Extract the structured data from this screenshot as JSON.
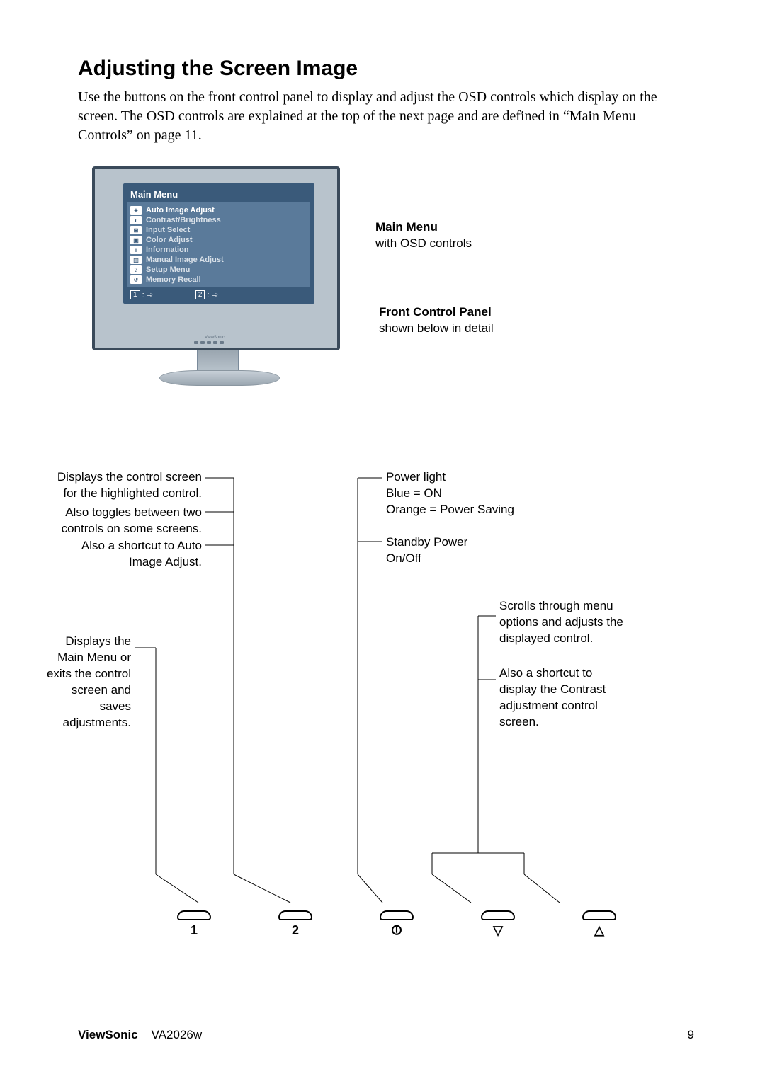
{
  "heading": "Adjusting the Screen Image",
  "intro": "Use the buttons on the front control panel to display and adjust the OSD controls which display on the screen. The OSD controls are explained at the top of the next page and are defined in “Main Menu Controls” on page 11.",
  "osd": {
    "title": "Main Menu",
    "items": [
      {
        "icon": "✦",
        "label": "Auto Image Adjust"
      },
      {
        "icon": "◐",
        "label": "Contrast/Brightness"
      },
      {
        "icon": "⊞",
        "label": "Input Select"
      },
      {
        "icon": "▣",
        "label": "Color Adjust"
      },
      {
        "icon": "i",
        "label": "Information"
      },
      {
        "icon": "◫",
        "label": "Manual Image Adjust"
      },
      {
        "icon": "?",
        "label": "Setup Menu"
      },
      {
        "icon": "↺",
        "label": "Memory Recall"
      }
    ],
    "footer1": "1",
    "footer2": "2",
    "footer_sym": ": ⇨"
  },
  "callouts": {
    "mainmenu_title": "Main Menu",
    "mainmenu_sub": "with OSD controls",
    "fcp_title": "Front Control Panel",
    "fcp_sub": "shown below in detail"
  },
  "annot": {
    "a1": "Displays the control screen for the highlighted control.",
    "a2": "Also toggles between two controls on some screens.",
    "a3": "Also a shortcut to Auto Image Adjust.",
    "b1": "Displays the Main Menu or exits the control screen and saves adjustments.",
    "p1": "Power light",
    "p2": "Blue = ON",
    "p3": "Orange = Power Saving",
    "s1": "Standby Power On/Off",
    "r1": "Scrolls through menu options and adjusts the displayed control.",
    "r2": "Also a shortcut to display the Contrast adjustment control screen."
  },
  "buttons": {
    "b1": "1",
    "b2": "2",
    "b3": "⏼",
    "b4": "▽",
    "b5": "△"
  },
  "footer": {
    "brand": "ViewSonic",
    "model": "VA2026w",
    "page": "9"
  },
  "colors": {
    "osd_bg": "#3a5a7a",
    "osd_list_bg": "#5a7a9a",
    "screen_bg": "#b8c3cc",
    "frame": "#3a4a5a"
  }
}
